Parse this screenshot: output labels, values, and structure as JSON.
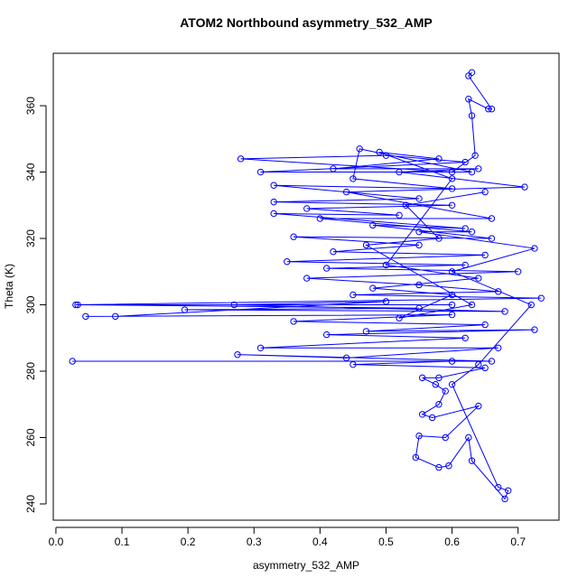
{
  "chart_data": {
    "type": "line",
    "title": "ATOM2 Northbound asymmetry_532_AMP",
    "x_label": "asymmetry_532_AMP",
    "y_label": "Theta (K)",
    "color": "#0000ff",
    "marker": "open-circle",
    "xlim": [
      -0.004,
      0.762
    ],
    "ylim": [
      235.1,
      375.8
    ],
    "xticks": [
      {
        "value": 0,
        "label": "0.0"
      },
      0.1,
      0.2,
      0.3,
      0.4,
      0.5,
      0.6,
      0.7
    ],
    "yticks": [
      240,
      260,
      280,
      300,
      320,
      340,
      360
    ],
    "x": [
      0.63,
      0.625,
      0.66,
      0.655,
      0.625,
      0.63,
      0.635,
      0.6,
      0.28,
      0.5,
      0.62,
      0.31,
      0.63,
      0.46,
      0.45,
      0.6,
      0.33,
      0.55,
      0.33,
      0.6,
      0.38,
      0.52,
      0.33,
      0.62,
      0.48,
      0.66,
      0.36,
      0.55,
      0.42,
      0.65,
      0.35,
      0.62,
      0.41,
      0.7,
      0.38,
      0.55,
      0.67,
      0.45,
      0.735,
      0.03,
      0.6,
      0.033,
      0.55,
      0.195,
      0.68,
      0.27,
      0.5,
      0.09,
      0.045,
      0.6,
      0.36,
      0.65,
      0.47,
      0.725,
      0.41,
      0.62,
      0.31,
      0.67,
      0.44,
      0.275,
      0.66,
      0.025,
      0.6,
      0.45,
      0.65,
      0.58,
      0.555,
      0.575,
      0.59,
      0.58,
      0.555,
      0.57,
      0.64,
      0.59,
      0.55,
      0.545,
      0.58,
      0.595,
      0.625,
      0.63,
      0.68,
      0.685,
      0.67,
      0.6,
      0.64,
      0.72,
      0.6,
      0.725,
      0.55,
      0.63,
      0.4,
      0.66,
      0.44,
      0.71,
      0.52,
      0.64,
      0.42,
      0.58,
      0.49,
      0.6,
      0.5,
      0.64,
      0.48,
      0.6,
      0.52,
      0.63,
      0.47,
      0.58,
      0.53,
      0.65
    ],
    "values": [
      370,
      369,
      359,
      359,
      362,
      357,
      345,
      340,
      344,
      345,
      343,
      340,
      340,
      347,
      338,
      335,
      336,
      332,
      331,
      330,
      329,
      327,
      327.5,
      323,
      324,
      320,
      320.5,
      318,
      316,
      315,
      313,
      312,
      311,
      310,
      308,
      306,
      304,
      303,
      302,
      300,
      300,
      300,
      299,
      298.5,
      298,
      300,
      301,
      296.5,
      296.5,
      297,
      295,
      294,
      292,
      292.5,
      291,
      290,
      287,
      287,
      284,
      285,
      283,
      283,
      283,
      282,
      281,
      278,
      278,
      276,
      274,
      270,
      267,
      266,
      269.5,
      260,
      260.5,
      254,
      251,
      251.5,
      260,
      253,
      241.5,
      244,
      245,
      276,
      282,
      300,
      310,
      317,
      322,
      322,
      326,
      326,
      334,
      335.5,
      340,
      341,
      341,
      344,
      346,
      338,
      312,
      308,
      305,
      303,
      296,
      300,
      318,
      320,
      330,
      334
    ]
  }
}
